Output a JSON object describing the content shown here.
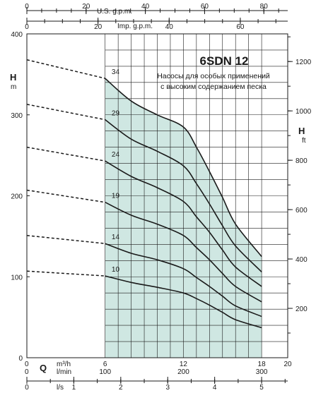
{
  "chart_data": {
    "type": "line",
    "title": "6SDN 12",
    "subtitle_lines": [
      "Насосы для особых применений",
      "с высоким содержанием песка"
    ],
    "colors": {
      "operating_area": "#cfe7e2",
      "curve": "#1a1a1a",
      "grid": "#1a1a1a"
    },
    "axes": {
      "left": {
        "symbol": "H",
        "unit": "m",
        "range": [
          0,
          400
        ],
        "ticks": [
          0,
          100,
          200,
          300,
          400
        ]
      },
      "right": {
        "symbol": "H",
        "unit": "ft",
        "range": [
          0,
          1312
        ],
        "ticks": [
          200,
          400,
          600,
          800,
          1000,
          1200
        ]
      },
      "bottom_m3h": {
        "symbol": "Q",
        "unit": "m³/h",
        "range": [
          0,
          20
        ],
        "ticks": [
          0,
          6,
          12,
          18,
          20
        ],
        "tick_labels": [
          "0",
          "6",
          "12",
          "18",
          "20"
        ]
      },
      "bottom_lmin": {
        "unit": "l/min",
        "range": [
          0,
          333.3
        ],
        "ticks": [
          0,
          100,
          200,
          300
        ]
      },
      "bottom_ls": {
        "unit": "l/s",
        "range": [
          0,
          5.556
        ],
        "ticks": [
          0,
          1,
          2,
          3,
          4,
          5
        ]
      },
      "top_usgpm": {
        "label": "U.S. g.p.m.",
        "range": [
          0,
          88.06
        ],
        "ticks": [
          0,
          20,
          40,
          60,
          80
        ]
      },
      "top_impgpm": {
        "label": "Imp. g.p.m.",
        "range": [
          0,
          73.33
        ],
        "ticks": [
          0,
          20,
          40,
          60
        ]
      }
    },
    "operating_range_q": [
      6.0,
      18.0
    ],
    "series": [
      {
        "name": "34",
        "shutoff_head": 368,
        "points": [
          [
            6,
            345
          ],
          [
            8,
            317
          ],
          [
            10,
            300
          ],
          [
            12,
            285
          ],
          [
            13,
            260
          ],
          [
            14,
            230
          ],
          [
            15,
            198
          ],
          [
            16,
            165
          ],
          [
            18,
            125
          ]
        ]
      },
      {
        "name": "29",
        "shutoff_head": 313,
        "points": [
          [
            6,
            294
          ],
          [
            8,
            270
          ],
          [
            10,
            255
          ],
          [
            12,
            237
          ],
          [
            13,
            215
          ],
          [
            14,
            190
          ],
          [
            15,
            163
          ],
          [
            16,
            138
          ],
          [
            18,
            106
          ]
        ]
      },
      {
        "name": "24",
        "shutoff_head": 260,
        "points": [
          [
            6,
            243
          ],
          [
            8,
            224
          ],
          [
            10,
            210
          ],
          [
            12,
            193
          ],
          [
            13,
            174
          ],
          [
            14,
            155
          ],
          [
            15,
            133
          ],
          [
            16,
            112
          ],
          [
            18,
            88
          ]
        ]
      },
      {
        "name": "19",
        "shutoff_head": 207,
        "points": [
          [
            6,
            192
          ],
          [
            8,
            176
          ],
          [
            10,
            165
          ],
          [
            12,
            151
          ],
          [
            13,
            136
          ],
          [
            14,
            121
          ],
          [
            15,
            104
          ],
          [
            16,
            88
          ],
          [
            18,
            69
          ]
        ]
      },
      {
        "name": "14",
        "shutoff_head": 151,
        "points": [
          [
            6,
            141
          ],
          [
            8,
            129
          ],
          [
            10,
            121
          ],
          [
            12,
            110
          ],
          [
            13,
            99
          ],
          [
            14,
            88
          ],
          [
            15,
            76
          ],
          [
            16,
            64
          ],
          [
            18,
            51
          ]
        ]
      },
      {
        "name": "10",
        "shutoff_head": 107,
        "points": [
          [
            6,
            101
          ],
          [
            8,
            93
          ],
          [
            10,
            87
          ],
          [
            12,
            80
          ],
          [
            13,
            73
          ],
          [
            14,
            65
          ],
          [
            15,
            56
          ],
          [
            16,
            47
          ],
          [
            18,
            37
          ]
        ]
      }
    ]
  }
}
